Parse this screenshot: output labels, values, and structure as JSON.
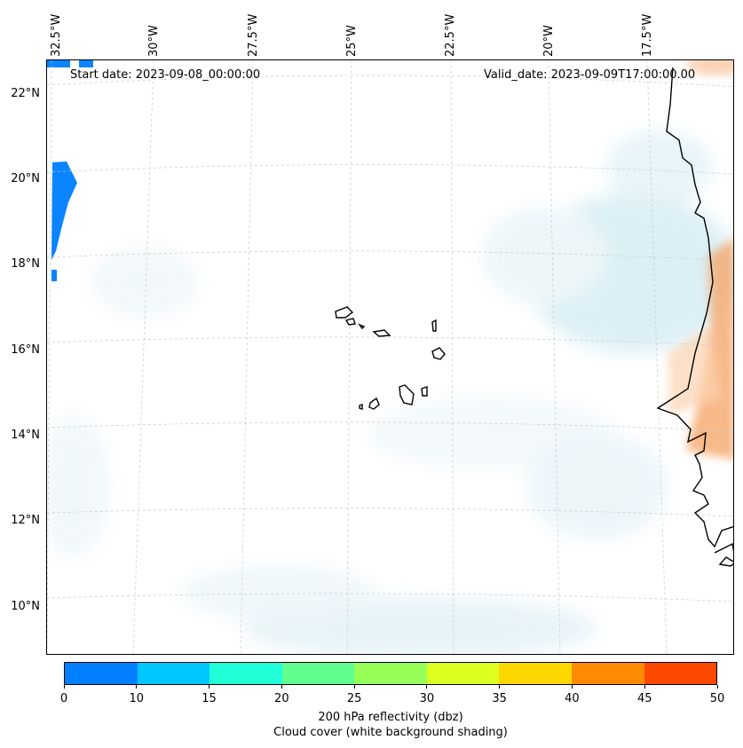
{
  "map": {
    "longitude_labels": [
      "32.5°W",
      "30°W",
      "27.5°W",
      "25°W",
      "22.5°W",
      "20°W",
      "17.5°W"
    ],
    "latitude_labels": [
      "22°N",
      "20°N",
      "18°N",
      "16°N",
      "14°N",
      "12°N",
      "10°N"
    ],
    "start_date": "Start date: 2023-09-08_00:00:00",
    "valid_date": "Valid_date: 2023-09-09T17:00:00.00"
  },
  "colorbar": {
    "ticks": [
      "0",
      "10",
      "15",
      "20",
      "25",
      "30",
      "35",
      "40",
      "45",
      "50"
    ],
    "colors": [
      "#0080ff",
      "#00c8ff",
      "#20ffd8",
      "#60ff90",
      "#98ff58",
      "#dcff20",
      "#ffd800",
      "#ff8c00",
      "#ff4800"
    ],
    "title_line1": "200 hPa reflectivity (dbz)",
    "title_line2": "Cloud cover (white background shading)"
  }
}
